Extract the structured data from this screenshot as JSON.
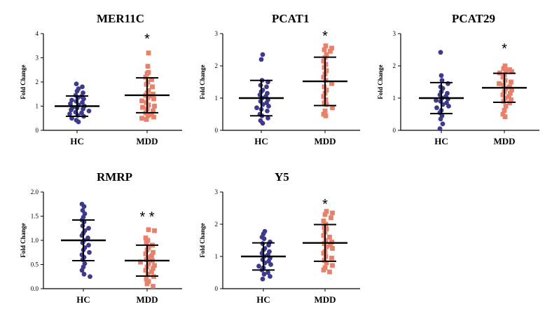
{
  "colors": {
    "hc": "#3d3a8c",
    "mdd": "#e8806a",
    "axis": "#000000"
  },
  "chart_data": [
    {
      "type": "scatter",
      "title": "MER11C",
      "ylabel": "Fold Change",
      "ylim": [
        0,
        4
      ],
      "yticks": [
        0,
        1,
        2,
        3,
        4
      ],
      "categories": [
        "HC",
        "MDD"
      ],
      "significance": "*",
      "series": [
        {
          "name": "HC",
          "mean": 1.0,
          "sd": 0.42,
          "values": [
            1.92,
            1.8,
            1.72,
            1.62,
            1.55,
            1.45,
            1.4,
            1.35,
            1.3,
            1.25,
            1.2,
            1.15,
            1.1,
            1.05,
            1.0,
            0.95,
            0.92,
            0.88,
            0.85,
            0.8,
            0.75,
            0.72,
            0.68,
            0.62,
            0.58,
            0.5,
            0.42,
            0.35
          ]
        },
        {
          "name": "MDD",
          "mean": 1.45,
          "sd": 0.72,
          "values": [
            3.2,
            2.65,
            2.4,
            2.35,
            2.2,
            2.1,
            2.0,
            1.9,
            1.8,
            1.65,
            1.55,
            1.5,
            1.45,
            1.42,
            1.35,
            1.3,
            1.22,
            1.15,
            1.05,
            1.0,
            0.95,
            0.88,
            0.8,
            0.72,
            0.65,
            0.6,
            0.55,
            0.5,
            0.45
          ]
        }
      ]
    },
    {
      "type": "scatter",
      "title": "PCAT1",
      "ylabel": "Fold Change",
      "ylim": [
        0,
        3
      ],
      "yticks": [
        0,
        1,
        2,
        3
      ],
      "categories": [
        "HC",
        "MDD"
      ],
      "significance": "*",
      "series": [
        {
          "name": "HC",
          "mean": 1.0,
          "sd": 0.55,
          "values": [
            2.35,
            2.2,
            1.55,
            1.5,
            1.4,
            1.35,
            1.25,
            1.2,
            1.15,
            1.1,
            1.05,
            1.0,
            0.95,
            0.9,
            0.85,
            0.8,
            0.75,
            0.7,
            0.65,
            0.6,
            0.5,
            0.45,
            0.38,
            0.3,
            0.22
          ]
        },
        {
          "name": "MDD",
          "mean": 1.52,
          "sd": 0.75,
          "values": [
            2.62,
            2.55,
            2.5,
            2.45,
            2.35,
            2.25,
            2.15,
            2.05,
            1.95,
            1.85,
            1.75,
            1.65,
            1.55,
            1.45,
            1.35,
            1.25,
            1.15,
            1.05,
            0.95,
            0.85,
            0.8,
            0.7,
            0.6,
            0.5,
            0.45
          ]
        }
      ]
    },
    {
      "type": "scatter",
      "title": "PCAT29",
      "ylabel": "Fold Change",
      "ylim": [
        0,
        3
      ],
      "yticks": [
        0,
        1,
        2,
        3
      ],
      "categories": [
        "HC",
        "MDD"
      ],
      "significance": "*",
      "series": [
        {
          "name": "HC",
          "mean": 1.0,
          "sd": 0.48,
          "values": [
            2.42,
            1.7,
            1.55,
            1.45,
            1.35,
            1.3,
            1.2,
            1.15,
            1.1,
            1.05,
            1.0,
            0.97,
            0.93,
            0.9,
            0.85,
            0.8,
            0.75,
            0.7,
            0.62,
            0.55,
            0.45,
            0.35,
            0.2,
            0.05
          ]
        },
        {
          "name": "MDD",
          "mean": 1.32,
          "sd": 0.45,
          "values": [
            2.0,
            1.92,
            1.88,
            1.85,
            1.82,
            1.78,
            1.72,
            1.65,
            1.55,
            1.5,
            1.45,
            1.4,
            1.35,
            1.3,
            1.25,
            1.2,
            1.15,
            1.1,
            1.05,
            1.0,
            0.95,
            0.9,
            0.85,
            0.75,
            0.62,
            0.5,
            0.42
          ]
        }
      ]
    },
    {
      "type": "scatter",
      "title": "RMRP",
      "ylabel": "Fold Change",
      "ylim": [
        0,
        2.0
      ],
      "yticks": [
        0.0,
        0.5,
        1.0,
        1.5,
        2.0
      ],
      "categories": [
        "HC",
        "MDD"
      ],
      "significance": "* *",
      "series": [
        {
          "name": "HC",
          "mean": 1.0,
          "sd": 0.42,
          "values": [
            1.75,
            1.7,
            1.62,
            1.55,
            1.48,
            1.42,
            1.38,
            1.3,
            1.25,
            1.2,
            1.15,
            1.1,
            1.05,
            1.0,
            0.95,
            0.9,
            0.85,
            0.8,
            0.75,
            0.7,
            0.65,
            0.6,
            0.52,
            0.45,
            0.38,
            0.3,
            0.25
          ]
        },
        {
          "name": "MDD",
          "mean": 0.58,
          "sd": 0.32,
          "values": [
            1.22,
            1.2,
            1.05,
            1.0,
            0.95,
            0.9,
            0.85,
            0.8,
            0.75,
            0.72,
            0.68,
            0.65,
            0.6,
            0.58,
            0.55,
            0.52,
            0.48,
            0.45,
            0.42,
            0.38,
            0.35,
            0.3,
            0.25,
            0.2,
            0.15,
            0.1,
            0.05
          ]
        }
      ]
    },
    {
      "type": "scatter",
      "title": "Y5",
      "ylabel": "Fold Change",
      "ylim": [
        0,
        3
      ],
      "yticks": [
        0,
        1,
        2,
        3
      ],
      "categories": [
        "HC",
        "MDD"
      ],
      "significance": "*",
      "series": [
        {
          "name": "HC",
          "mean": 1.0,
          "sd": 0.42,
          "values": [
            1.78,
            1.7,
            1.6,
            1.55,
            1.45,
            1.4,
            1.35,
            1.25,
            1.2,
            1.15,
            1.1,
            1.05,
            1.0,
            0.95,
            0.9,
            0.85,
            0.8,
            0.75,
            0.7,
            0.65,
            0.58,
            0.5,
            0.45,
            0.38,
            0.3
          ]
        },
        {
          "name": "MDD",
          "mean": 1.42,
          "sd": 0.57,
          "values": [
            2.4,
            2.35,
            2.3,
            2.2,
            2.1,
            2.0,
            1.9,
            1.85,
            1.75,
            1.65,
            1.6,
            1.5,
            1.45,
            1.4,
            1.35,
            1.3,
            1.25,
            1.15,
            1.1,
            1.0,
            0.95,
            0.88,
            0.8,
            0.72,
            0.65,
            0.58,
            0.52
          ]
        }
      ]
    }
  ]
}
